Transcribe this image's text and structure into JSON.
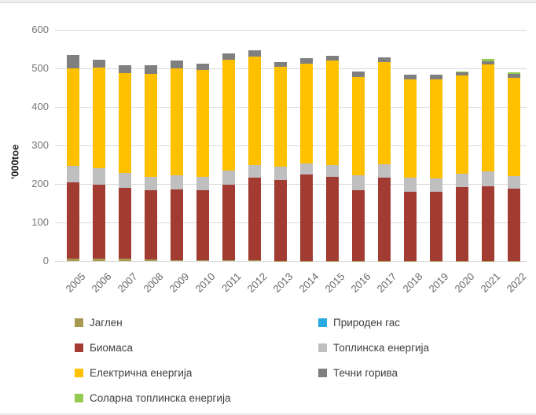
{
  "chart_data": {
    "type": "bar",
    "stacked": true,
    "ylabel": "'000toe",
    "ylim": [
      0,
      600
    ],
    "ytick_step": 100,
    "grid": true,
    "legend_position": "bottom",
    "legend_columns": 2,
    "categories": [
      "2005",
      "2006",
      "2007",
      "2008",
      "2009",
      "2010",
      "2011",
      "2012",
      "2013",
      "2014",
      "2015",
      "2016",
      "2017",
      "2018",
      "2019",
      "2020",
      "2021",
      "2022"
    ],
    "series": [
      {
        "name": "Јаглен",
        "color": "#A7994F",
        "values": [
          6,
          6,
          6,
          4,
          2,
          2,
          2,
          2,
          1,
          1,
          1,
          1,
          1,
          1,
          1,
          1,
          1,
          1
        ]
      },
      {
        "name": "Природен гас",
        "color": "#29ABE2",
        "values": [
          0,
          0,
          0,
          0,
          0,
          0,
          0,
          0,
          0,
          0,
          0,
          0,
          0,
          0,
          0,
          0,
          0,
          0
        ]
      },
      {
        "name": "Биомаса",
        "color": "#A23C33",
        "values": [
          199,
          193,
          183,
          179,
          184,
          181,
          196,
          214,
          210,
          224,
          217,
          183,
          215,
          179,
          178,
          190,
          193,
          187
        ]
      },
      {
        "name": "Топлинска енергија",
        "color": "#BFBFBF",
        "values": [
          42,
          42,
          40,
          35,
          36,
          35,
          36,
          34,
          34,
          29,
          32,
          38,
          36,
          36,
          36,
          35,
          38,
          33
        ]
      },
      {
        "name": "Електрична енергија",
        "color": "#FFC000",
        "values": [
          253,
          262,
          259,
          268,
          279,
          279,
          289,
          281,
          259,
          259,
          270,
          256,
          265,
          255,
          257,
          256,
          279,
          255
        ]
      },
      {
        "name": "Течни горива",
        "color": "#7F7F7F",
        "values": [
          34,
          19,
          21,
          22,
          20,
          16,
          16,
          16,
          13,
          13,
          13,
          14,
          12,
          12,
          12,
          8,
          8,
          9
        ]
      },
      {
        "name": "Соларна топлинска енергија",
        "color": "#92CB50",
        "values": [
          0,
          0,
          0,
          0,
          0,
          0,
          0,
          0,
          0,
          0,
          0,
          0,
          0,
          0,
          0,
          2,
          5,
          5
        ]
      }
    ]
  }
}
